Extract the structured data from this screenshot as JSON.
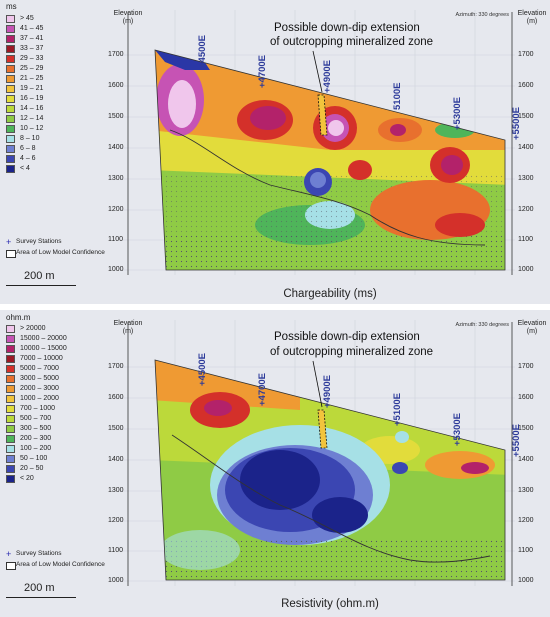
{
  "panels": [
    {
      "id": "chargeability",
      "unit": "ms",
      "legend": [
        {
          "label": "> 45",
          "color": "#f0c6ec"
        },
        {
          "label": "41 – 45",
          "color": "#c653b4"
        },
        {
          "label": "37 – 41",
          "color": "#b3226a"
        },
        {
          "label": "33 – 37",
          "color": "#9c1a26"
        },
        {
          "label": "29 – 33",
          "color": "#d4302a"
        },
        {
          "label": "25 – 29",
          "color": "#e8702e"
        },
        {
          "label": "21 – 25",
          "color": "#ef9a33"
        },
        {
          "label": "19 – 21",
          "color": "#f2c43c"
        },
        {
          "label": "16 – 19",
          "color": "#e2dc3b"
        },
        {
          "label": "14 – 16",
          "color": "#bcd93a"
        },
        {
          "label": "12 – 14",
          "color": "#8fcb45"
        },
        {
          "label": "10 – 12",
          "color": "#4fb55a"
        },
        {
          "label": "8 – 10",
          "color": "#a6e0e6"
        },
        {
          "label": "6 – 8",
          "color": "#6e7fd2"
        },
        {
          "label": "4 – 6",
          "color": "#3b46b2"
        },
        {
          "label": "< 4",
          "color": "#1b238a"
        }
      ],
      "survey_label": "Survey Stations",
      "low_conf_label": "Area of Low Model Confidence",
      "scale_label": "200 m",
      "elev_title_left": "Elevation\n(m)",
      "elev_title_right": "Elevation\n(m)",
      "azimuth": "Azimuth: 330 degrees",
      "elevations": [
        "1700",
        "1600",
        "1500",
        "1400",
        "1300",
        "1200",
        "1100",
        "1000"
      ],
      "stations": [
        "+4500E",
        "+4700E",
        "+4900E",
        "5100E",
        "+5300E",
        "+5500E"
      ],
      "annotation_line1": "Possible down-dip extension",
      "annotation_line2": "of outcropping mineralized zone",
      "caption": "Chargeability (ms)"
    },
    {
      "id": "resistivity",
      "unit": "ohm.m",
      "legend": [
        {
          "label": "> 20000",
          "color": "#f0c6ec"
        },
        {
          "label": "15000 – 20000",
          "color": "#c653b4"
        },
        {
          "label": "10000 – 15000",
          "color": "#b3226a"
        },
        {
          "label": "7000 – 10000",
          "color": "#9c1a26"
        },
        {
          "label": "5000 – 7000",
          "color": "#d4302a"
        },
        {
          "label": "3000 – 5000",
          "color": "#e8702e"
        },
        {
          "label": "2000 – 3000",
          "color": "#ef9a33"
        },
        {
          "label": "1000 – 2000",
          "color": "#f2c43c"
        },
        {
          "label": "700 – 1000",
          "color": "#e2dc3b"
        },
        {
          "label": "500 – 700",
          "color": "#bcd93a"
        },
        {
          "label": "300 – 500",
          "color": "#8fcb45"
        },
        {
          "label": "200 – 300",
          "color": "#4fb55a"
        },
        {
          "label": "100 – 200",
          "color": "#a6e0e6"
        },
        {
          "label": "50 – 100",
          "color": "#6e7fd2"
        },
        {
          "label": "20 – 50",
          "color": "#3b46b2"
        },
        {
          "label": "< 20",
          "color": "#1b238a"
        }
      ],
      "survey_label": "Survey Stations",
      "low_conf_label": "Area of Low Model Confidence",
      "scale_label": "200 m",
      "elev_title_left": "Elevation\n(m)",
      "elev_title_right": "Elevation\n(m)",
      "azimuth": "Azimuth: 330 degrees",
      "elevations": [
        "1700",
        "1600",
        "1500",
        "1400",
        "1300",
        "1200",
        "1100",
        "1000"
      ],
      "stations": [
        "+4500E",
        "+4700E",
        "+4900E",
        "+5100E",
        "+5300E",
        "+5500E"
      ],
      "annotation_line1": "Possible down-dip extension",
      "annotation_line2": "of outcropping mineralized zone",
      "caption": "Resistivity (ohm.m)"
    }
  ]
}
